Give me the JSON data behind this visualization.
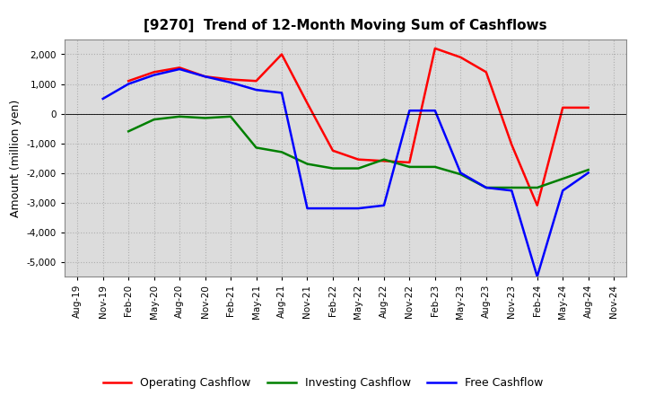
{
  "title": "[9270]  Trend of 12-Month Moving Sum of Cashflows",
  "ylabel": "Amount (million yen)",
  "x_labels": [
    "Aug-19",
    "Nov-19",
    "Feb-20",
    "May-20",
    "Aug-20",
    "Nov-20",
    "Feb-21",
    "May-21",
    "Aug-21",
    "Nov-21",
    "Feb-22",
    "May-22",
    "Aug-22",
    "Nov-22",
    "Feb-23",
    "May-23",
    "Aug-23",
    "Nov-23",
    "Feb-24",
    "May-24",
    "Aug-24",
    "Nov-24"
  ],
  "operating": [
    null,
    null,
    1100,
    1400,
    1550,
    1250,
    1150,
    1100,
    2000,
    350,
    -1250,
    -1550,
    -1600,
    -1650,
    2200,
    1900,
    1400,
    -1050,
    -3100,
    200,
    200,
    null
  ],
  "investing": [
    null,
    null,
    -600,
    -200,
    -100,
    -150,
    -100,
    -1150,
    -1300,
    -1700,
    -1850,
    -1850,
    -1550,
    -1800,
    -1800,
    -2050,
    -2500,
    -2500,
    -2500,
    -2200,
    -1900,
    null
  ],
  "free": [
    null,
    500,
    1000,
    1300,
    1500,
    1250,
    1050,
    800,
    700,
    -3200,
    -3200,
    -3200,
    -3100,
    100,
    100,
    -2000,
    -2500,
    -2600,
    -5500,
    -2600,
    -2000,
    null
  ],
  "ylim": [
    -5500,
    2500
  ],
  "yticks": [
    -5000,
    -4000,
    -3000,
    -2000,
    -1000,
    0,
    1000,
    2000
  ],
  "colors": {
    "operating": "#ff0000",
    "investing": "#008000",
    "free": "#0000ff"
  },
  "grid_color": "#aaaaaa",
  "grid_style": ":",
  "plot_bg": "#dcdcdc",
  "fig_bg": "#ffffff",
  "linewidth": 1.8
}
